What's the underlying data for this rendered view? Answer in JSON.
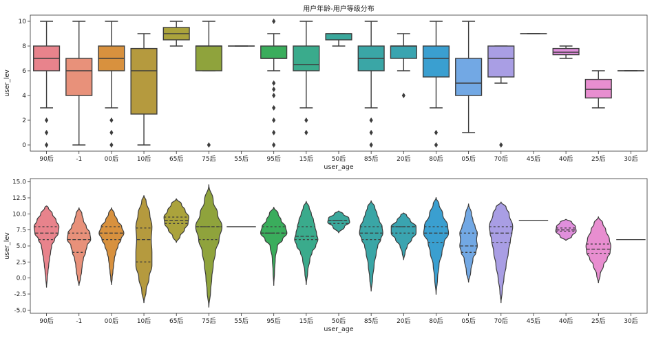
{
  "chart_data": [
    {
      "type": "box",
      "title": "用户年龄-用户等级分布",
      "xlabel": "user_age",
      "ylabel": "user_lev",
      "ylim": [
        -0.5,
        10.5
      ],
      "yticks": [
        0,
        2,
        4,
        6,
        8,
        10
      ],
      "grid": false,
      "categories": [
        "90后",
        "-1",
        "00后",
        "10后",
        "65后",
        "75后",
        "55后",
        "95后",
        "15后",
        "50后",
        "85后",
        "20后",
        "80后",
        "05后",
        "70后",
        "45后",
        "40后",
        "25后",
        "30后"
      ],
      "colors": [
        "#e8838c",
        "#e8917a",
        "#d8913e",
        "#b59a3e",
        "#aba33c",
        "#8fa33c",
        "#6aab3c",
        "#3aad5c",
        "#3aab8c",
        "#3aa89c",
        "#3aa6a6",
        "#3aa4b0",
        "#3a9fd0",
        "#72a8e4",
        "#a99ee4",
        "#c89ae4",
        "#e08fdc",
        "#e88ed0",
        "#ec8fbc"
      ],
      "boxes": [
        {
          "min": 3,
          "q1": 6,
          "median": 7,
          "q3": 8,
          "max": 10,
          "fliers": [
            2,
            1,
            0
          ]
        },
        {
          "min": 0,
          "q1": 4,
          "median": 6,
          "q3": 7,
          "max": 10,
          "fliers": []
        },
        {
          "min": 3,
          "q1": 6,
          "median": 7,
          "q3": 8,
          "max": 10,
          "fliers": [
            2,
            1,
            0
          ]
        },
        {
          "min": 0,
          "q1": 2.5,
          "median": 6,
          "q3": 7.8,
          "max": 9,
          "fliers": []
        },
        {
          "min": 8,
          "q1": 8.5,
          "median": 9,
          "q3": 9.5,
          "max": 10,
          "fliers": []
        },
        {
          "min": 6,
          "q1": 6,
          "median": 8,
          "q3": 8,
          "max": 10,
          "fliers": [
            0
          ]
        },
        {
          "min": 8,
          "q1": 8,
          "median": 8,
          "q3": 8,
          "max": 8,
          "fliers": []
        },
        {
          "min": 6,
          "q1": 7,
          "median": 7,
          "q3": 8,
          "max": 9,
          "fliers": [
            10,
            5,
            4.5,
            4,
            3,
            2,
            1,
            0
          ]
        },
        {
          "min": 3,
          "q1": 6,
          "median": 6.5,
          "q3": 8,
          "max": 10,
          "fliers": [
            2,
            1
          ]
        },
        {
          "min": 8,
          "q1": 8.5,
          "median": 9,
          "q3": 9,
          "max": 9,
          "fliers": []
        },
        {
          "min": 3,
          "q1": 6,
          "median": 7,
          "q3": 8,
          "max": 10,
          "fliers": [
            2,
            1,
            0
          ]
        },
        {
          "min": 6,
          "q1": 7,
          "median": 8,
          "q3": 8,
          "max": 9,
          "fliers": [
            4
          ]
        },
        {
          "min": 3,
          "q1": 5.5,
          "median": 7,
          "q3": 8,
          "max": 10,
          "fliers": [
            1,
            0
          ]
        },
        {
          "min": 1,
          "q1": 4,
          "median": 5,
          "q3": 7,
          "max": 10,
          "fliers": []
        },
        {
          "min": 5,
          "q1": 5.5,
          "median": 7,
          "q3": 8,
          "max": 8,
          "fliers": [
            0
          ]
        },
        {
          "min": 9,
          "q1": 9,
          "median": 9,
          "q3": 9,
          "max": 9,
          "fliers": []
        },
        {
          "min": 7,
          "q1": 7.3,
          "median": 7.5,
          "q3": 7.8,
          "max": 8,
          "fliers": []
        },
        {
          "min": 3,
          "q1": 3.8,
          "median": 4.5,
          "q3": 5.3,
          "max": 6,
          "fliers": []
        },
        {
          "min": 6,
          "q1": 6,
          "median": 6,
          "q3": 6,
          "max": 6,
          "fliers": []
        }
      ]
    },
    {
      "type": "violin",
      "title": "",
      "xlabel": "user_age",
      "ylabel": "user_lev",
      "ylim": [
        -5.5,
        15.5
      ],
      "yticks": [
        -5.0,
        -2.5,
        0.0,
        2.5,
        5.0,
        7.5,
        10.0,
        12.5,
        15.0
      ],
      "ytick_labels": [
        "-5.0",
        "-2.5",
        "0.0",
        "2.5",
        "5.0",
        "7.5",
        "10.0",
        "12.5",
        "15.0"
      ],
      "grid": false,
      "categories": [
        "90后",
        "-1",
        "00后",
        "10后",
        "65后",
        "75后",
        "55后",
        "95后",
        "15后",
        "50后",
        "85后",
        "20后",
        "80后",
        "05后",
        "70后",
        "45后",
        "40后",
        "25后",
        "30后"
      ],
      "colors": [
        "#e8838c",
        "#e8917a",
        "#d8913e",
        "#b59a3e",
        "#aba33c",
        "#8fa33c",
        "#6aab3c",
        "#3aad5c",
        "#3aab8c",
        "#3aa89c",
        "#3aa6a6",
        "#3aa4b0",
        "#3a9fd0",
        "#72a8e4",
        "#a99ee4",
        "#c89ae4",
        "#e08fdc",
        "#e88ed0",
        "#ec8fbc"
      ],
      "violins": [
        {
          "profile": [
            [
              -1.5,
              0
            ],
            [
              0,
              0.05
            ],
            [
              1,
              0.1
            ],
            [
              2,
              0.15
            ],
            [
              3,
              0.2
            ],
            [
              4,
              0.28
            ],
            [
              5,
              0.35
            ],
            [
              6,
              0.55
            ],
            [
              7,
              0.8
            ],
            [
              8,
              0.85
            ],
            [
              9,
              0.65
            ],
            [
              10,
              0.4
            ],
            [
              11,
              0.12
            ],
            [
              11.3,
              0
            ]
          ],
          "quartiles": [
            6,
            7,
            8
          ]
        },
        {
          "profile": [
            [
              -1.2,
              0
            ],
            [
              0,
              0.1
            ],
            [
              1,
              0.18
            ],
            [
              2,
              0.22
            ],
            [
              3,
              0.3
            ],
            [
              4,
              0.45
            ],
            [
              5,
              0.55
            ],
            [
              6,
              0.8
            ],
            [
              7,
              0.75
            ],
            [
              8,
              0.5
            ],
            [
              9,
              0.3
            ],
            [
              10,
              0.2
            ],
            [
              11,
              0
            ]
          ],
          "quartiles": [
            4,
            6,
            7
          ]
        },
        {
          "profile": [
            [
              -1.1,
              0
            ],
            [
              0,
              0.05
            ],
            [
              1,
              0.1
            ],
            [
              2,
              0.15
            ],
            [
              3,
              0.2
            ],
            [
              4,
              0.3
            ],
            [
              5,
              0.45
            ],
            [
              6,
              0.65
            ],
            [
              7,
              0.85
            ],
            [
              8,
              0.7
            ],
            [
              9,
              0.4
            ],
            [
              10,
              0.2
            ],
            [
              11,
              0
            ]
          ],
          "quartiles": [
            6,
            7,
            8
          ]
        },
        {
          "profile": [
            [
              -3.9,
              0
            ],
            [
              -2,
              0.15
            ],
            [
              0,
              0.35
            ],
            [
              2,
              0.55
            ],
            [
              4,
              0.55
            ],
            [
              6,
              0.5
            ],
            [
              8,
              0.55
            ],
            [
              10,
              0.4
            ],
            [
              12,
              0.15
            ],
            [
              12.9,
              0
            ]
          ],
          "quartiles": [
            2.5,
            6,
            7.8
          ]
        },
        {
          "profile": [
            [
              5.5,
              0
            ],
            [
              6.5,
              0.25
            ],
            [
              7.5,
              0.55
            ],
            [
              8.5,
              0.8
            ],
            [
              9.5,
              0.85
            ],
            [
              10.5,
              0.6
            ],
            [
              11.5,
              0.35
            ],
            [
              12.4,
              0
            ]
          ],
          "quartiles": [
            8.5,
            9,
            9.5
          ]
        },
        {
          "profile": [
            [
              -4.6,
              0
            ],
            [
              -2,
              0.12
            ],
            [
              0,
              0.2
            ],
            [
              2,
              0.3
            ],
            [
              4,
              0.45
            ],
            [
              6,
              0.7
            ],
            [
              8,
              0.9
            ],
            [
              10,
              0.6
            ],
            [
              12,
              0.3
            ],
            [
              14.6,
              0
            ]
          ],
          "quartiles": [
            6,
            8,
            8
          ]
        },
        {
          "profile": [
            [
              8,
              0
            ],
            [
              8,
              0
            ]
          ],
          "quartiles": [
            8,
            8,
            8
          ],
          "flat": true
        },
        {
          "profile": [
            [
              -1.2,
              0
            ],
            [
              1,
              0.05
            ],
            [
              3,
              0.1
            ],
            [
              5,
              0.25
            ],
            [
              6,
              0.6
            ],
            [
              7,
              0.9
            ],
            [
              8,
              0.8
            ],
            [
              9,
              0.5
            ],
            [
              10,
              0.3
            ],
            [
              11.1,
              0
            ]
          ],
          "quartiles": [
            7,
            7,
            8
          ]
        },
        {
          "profile": [
            [
              -1.1,
              0
            ],
            [
              1,
              0.1
            ],
            [
              3,
              0.25
            ],
            [
              4,
              0.4
            ],
            [
              5,
              0.65
            ],
            [
              6,
              0.8
            ],
            [
              7,
              0.7
            ],
            [
              8,
              0.6
            ],
            [
              9,
              0.5
            ],
            [
              10,
              0.35
            ],
            [
              11,
              0.2
            ],
            [
              12,
              0
            ]
          ],
          "quartiles": [
            6,
            6.5,
            8
          ]
        },
        {
          "profile": [
            [
              7,
              0
            ],
            [
              8,
              0.4
            ],
            [
              8.7,
              0.75
            ],
            [
              9.3,
              0.7
            ],
            [
              10,
              0.3
            ],
            [
              10.5,
              0
            ]
          ],
          "quartiles": [
            8.5,
            9,
            9
          ]
        },
        {
          "profile": [
            [
              -2.1,
              0
            ],
            [
              0,
              0.1
            ],
            [
              2,
              0.2
            ],
            [
              4,
              0.35
            ],
            [
              5,
              0.45
            ],
            [
              6,
              0.65
            ],
            [
              7,
              0.8
            ],
            [
              8,
              0.75
            ],
            [
              9,
              0.55
            ],
            [
              10,
              0.4
            ],
            [
              11,
              0.25
            ],
            [
              12.1,
              0
            ]
          ],
          "quartiles": [
            6,
            7,
            8
          ]
        },
        {
          "profile": [
            [
              2.8,
              0
            ],
            [
              4,
              0.1
            ],
            [
              5,
              0.25
            ],
            [
              6,
              0.55
            ],
            [
              7,
              0.85
            ],
            [
              8,
              0.85
            ],
            [
              9,
              0.45
            ],
            [
              9.8,
              0.2
            ],
            [
              10.2,
              0
            ]
          ],
          "quartiles": [
            7,
            8,
            8
          ]
        },
        {
          "profile": [
            [
              -2.6,
              0
            ],
            [
              0,
              0.1
            ],
            [
              2,
              0.2
            ],
            [
              4,
              0.4
            ],
            [
              5.5,
              0.55
            ],
            [
              7,
              0.85
            ],
            [
              8,
              0.8
            ],
            [
              10,
              0.45
            ],
            [
              11.5,
              0.2
            ],
            [
              12.6,
              0
            ]
          ],
          "quartiles": [
            5.5,
            7,
            8
          ]
        },
        {
          "profile": [
            [
              -0.7,
              0
            ],
            [
              1,
              0.15
            ],
            [
              3,
              0.3
            ],
            [
              4,
              0.5
            ],
            [
              5,
              0.6
            ],
            [
              6,
              0.55
            ],
            [
              7,
              0.6
            ],
            [
              8,
              0.45
            ],
            [
              9,
              0.3
            ],
            [
              10,
              0.2
            ],
            [
              11.6,
              0
            ]
          ],
          "quartiles": [
            4,
            5,
            7
          ]
        },
        {
          "profile": [
            [
              -3.9,
              0
            ],
            [
              -2,
              0.08
            ],
            [
              0,
              0.2
            ],
            [
              2,
              0.35
            ],
            [
              4,
              0.5
            ],
            [
              6,
              0.65
            ],
            [
              7,
              0.75
            ],
            [
              8,
              0.8
            ],
            [
              10,
              0.55
            ],
            [
              11,
              0.35
            ],
            [
              11.9,
              0
            ]
          ],
          "quartiles": [
            5.5,
            7,
            8
          ]
        },
        {
          "profile": [
            [
              9,
              0
            ],
            [
              9,
              0
            ]
          ],
          "quartiles": [
            9,
            9,
            9
          ],
          "flat": true
        },
        {
          "profile": [
            [
              5.8,
              0
            ],
            [
              6.5,
              0.4
            ],
            [
              7.3,
              0.7
            ],
            [
              8,
              0.65
            ],
            [
              8.7,
              0.4
            ],
            [
              9.2,
              0
            ]
          ],
          "quartiles": [
            7.3,
            7.5,
            7.8
          ]
        },
        {
          "profile": [
            [
              -0.8,
              0
            ],
            [
              0.5,
              0.12
            ],
            [
              2,
              0.35
            ],
            [
              3,
              0.6
            ],
            [
              4,
              0.8
            ],
            [
              5,
              0.85
            ],
            [
              6,
              0.75
            ],
            [
              7.5,
              0.5
            ],
            [
              8.5,
              0.3
            ],
            [
              9.6,
              0
            ]
          ],
          "quartiles": [
            3.8,
            4.5,
            5.3
          ]
        },
        {
          "profile": [
            [
              6,
              0
            ],
            [
              6,
              0
            ]
          ],
          "quartiles": [
            6,
            6,
            6
          ],
          "flat": true
        }
      ]
    }
  ]
}
